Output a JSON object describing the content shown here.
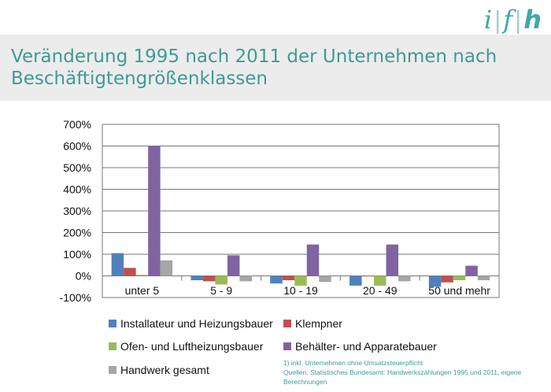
{
  "logo": {
    "i": "i",
    "sep": "|",
    "f": "f",
    "h": "h"
  },
  "title": "Veränderung 1995 nach 2011 der Unternehmen nach Beschäftigtengrößenklassen",
  "footnote": {
    "line1": "1) inkl. Unternehmen  ohne  Umsatzsteuerpflicht",
    "line2": "Quellen:  Statistisches Bundesamt: Handwerkszählungen  1995 und 2011, eigene Berechnungen"
  },
  "chart_data": {
    "type": "bar",
    "categories": [
      "unter 5",
      "5 - 9",
      "10 - 19",
      "20 - 49",
      "50 und mehr"
    ],
    "ylim": [
      -100,
      700
    ],
    "yticks": [
      -100,
      0,
      100,
      200,
      300,
      400,
      500,
      600,
      700
    ],
    "ytick_labels": [
      "-100%",
      "0%",
      "100%",
      "200%",
      "300%",
      "400%",
      "500%",
      "600%",
      "700%"
    ],
    "grid": true,
    "legend_position": "bottom",
    "series": [
      {
        "name": "Installateur und Heizungsbauer",
        "color": "#4f81bd",
        "values": [
          105,
          -20,
          -35,
          -45,
          -50
        ]
      },
      {
        "name": "Klempner",
        "color": "#c0504d",
        "values": [
          37,
          -25,
          -20,
          0,
          -30
        ]
      },
      {
        "name": "Ofen- und Luftheizungsbauer",
        "color": "#9bbb59",
        "values": [
          5,
          -40,
          -45,
          -45,
          -20
        ]
      },
      {
        "name": "Behälter- und Apparatebauer",
        "color": "#8064a2",
        "values": [
          600,
          95,
          145,
          145,
          47
        ]
      },
      {
        "name": "Handwerk gesamt",
        "color": "#a6a6a6",
        "values": [
          72,
          -25,
          -28,
          -25,
          -20
        ]
      }
    ]
  }
}
